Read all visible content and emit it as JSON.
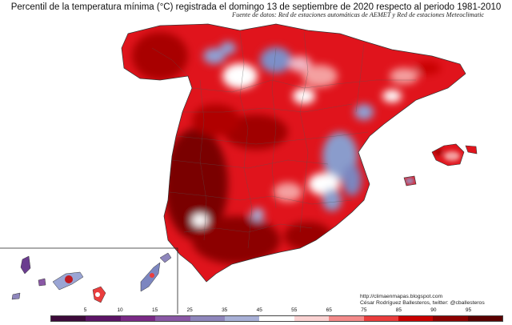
{
  "title": "Percentil de la temperatura mínima (°C) registrada el domingo 13 de septiembre de 2020 respecto al periodo 1981-2010",
  "subtitle": "Fuente de datos: Red de estaciones automáticas de AEMET y Red de estaciones Meteoclimatic",
  "credits": {
    "url": "http://climaenmapas.blogspot.com",
    "author": "César Rodríguez Ballesteros, twitter: @cballesteros"
  },
  "colorbar": {
    "ticks": [
      "5",
      "10",
      "15",
      "25",
      "35",
      "45",
      "55",
      "65",
      "75",
      "85",
      "90",
      "95"
    ],
    "colors": [
      "#3d0a3a",
      "#5c1466",
      "#7a2a86",
      "#8a58a6",
      "#8e86bc",
      "#a8b0d6",
      "#ffffff",
      "#fbd2d2",
      "#f48a8a",
      "#ea3d3d",
      "#c80000",
      "#8c0000",
      "#5a0000"
    ]
  },
  "legend_scale": "percentile"
}
